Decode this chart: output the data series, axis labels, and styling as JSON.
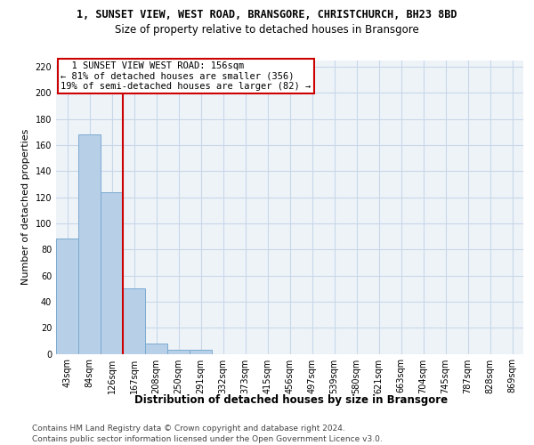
{
  "title1": "1, SUNSET VIEW, WEST ROAD, BRANSGORE, CHRISTCHURCH, BH23 8BD",
  "title2": "Size of property relative to detached houses in Bransgore",
  "xlabel": "Distribution of detached houses by size in Bransgore",
  "ylabel": "Number of detached properties",
  "bar_values": [
    88,
    168,
    124,
    50,
    8,
    3,
    3,
    0,
    0,
    0,
    0,
    0,
    0,
    0,
    0,
    0,
    0,
    0,
    0,
    0,
    0
  ],
  "bar_labels": [
    "43sqm",
    "84sqm",
    "126sqm",
    "167sqm",
    "208sqm",
    "250sqm",
    "291sqm",
    "332sqm",
    "373sqm",
    "415sqm",
    "456sqm",
    "497sqm",
    "539sqm",
    "580sqm",
    "621sqm",
    "663sqm",
    "704sqm",
    "745sqm",
    "787sqm",
    "828sqm",
    "869sqm"
  ],
  "bar_color": "#b8cfe8",
  "bar_edge_color": "#7aaad0",
  "grid_color": "#c8d8e8",
  "bg_color": "#eef3f8",
  "vline_x": 2.5,
  "vline_color": "#cc0000",
  "annotation_text": "  1 SUNSET VIEW WEST ROAD: 156sqm\n← 81% of detached houses are smaller (356)\n19% of semi-detached houses are larger (82) →",
  "annotation_box_color": "#ffffff",
  "annotation_box_edgecolor": "#cc0000",
  "ylim": [
    0,
    225
  ],
  "yticks": [
    0,
    20,
    40,
    60,
    80,
    100,
    120,
    140,
    160,
    180,
    200,
    220
  ],
  "footer1": "Contains HM Land Registry data © Crown copyright and database right 2024.",
  "footer2": "Contains public sector information licensed under the Open Government Licence v3.0.",
  "title1_fontsize": 8.5,
  "title2_fontsize": 8.5,
  "ylabel_fontsize": 8,
  "xlabel_fontsize": 8.5,
  "footer_fontsize": 6.5,
  "tick_fontsize": 7
}
